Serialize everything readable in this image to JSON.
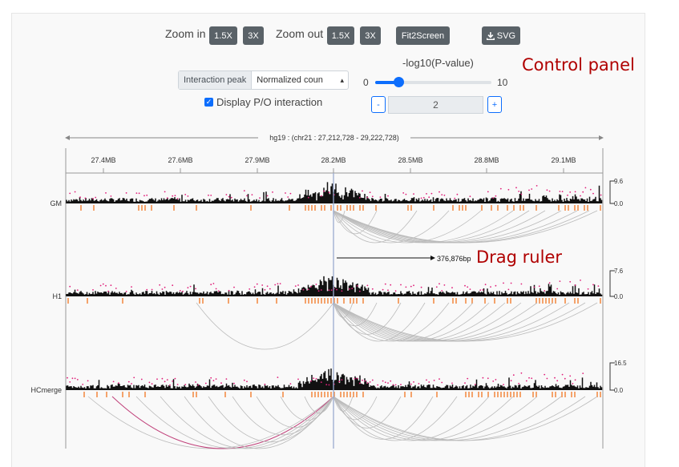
{
  "toolbar": {
    "zoom_in_label": "Zoom in",
    "zoom_out_label": "Zoom out",
    "zoom_in_1_5x": "1.5X",
    "zoom_in_3x": "3X",
    "zoom_out_1_5x": "1.5X",
    "zoom_out_3x": "3X",
    "fit_label": "Fit2Screen",
    "svg_label": "SVG",
    "svg_icon": "download-icon"
  },
  "controls": {
    "select_prefix": "Interaction peak",
    "select_value": "Normalized coun",
    "checkbox_label": "Display P/O interaction",
    "checkbox_checked": true,
    "slider_title": "-log10(P-value)",
    "slider_min": "0",
    "slider_max": "10",
    "slider_value": 2,
    "step_minus": "-",
    "step_plus": "+",
    "step_value": "2"
  },
  "annotations": {
    "control_panel": "Control panel",
    "drag_ruler": "Drag ruler"
  },
  "browser": {
    "region_label": "hg19 : (chr21 : 27,212,728 - 29,222,728)",
    "ticks": [
      "27.4MB",
      "27.6MB",
      "27.9MB",
      "28.2MB",
      "28.5MB",
      "28.8MB",
      "29.1MB"
    ],
    "ruler_label": "376,876bp",
    "tracks": [
      {
        "name": "GM",
        "max": "9.6",
        "min": "0.0"
      },
      {
        "name": "H1",
        "max": "7.6",
        "min": "0.0"
      },
      {
        "name": "HCmerge",
        "max": "16.5",
        "min": "0.0"
      }
    ],
    "colors": {
      "bar": "#111111",
      "dot": "#e0207a",
      "peak": "#f4a36c",
      "arc": "#bbbbbb",
      "arc_highlight": "#c0407a",
      "viewpoint": "#9aaad0"
    }
  }
}
